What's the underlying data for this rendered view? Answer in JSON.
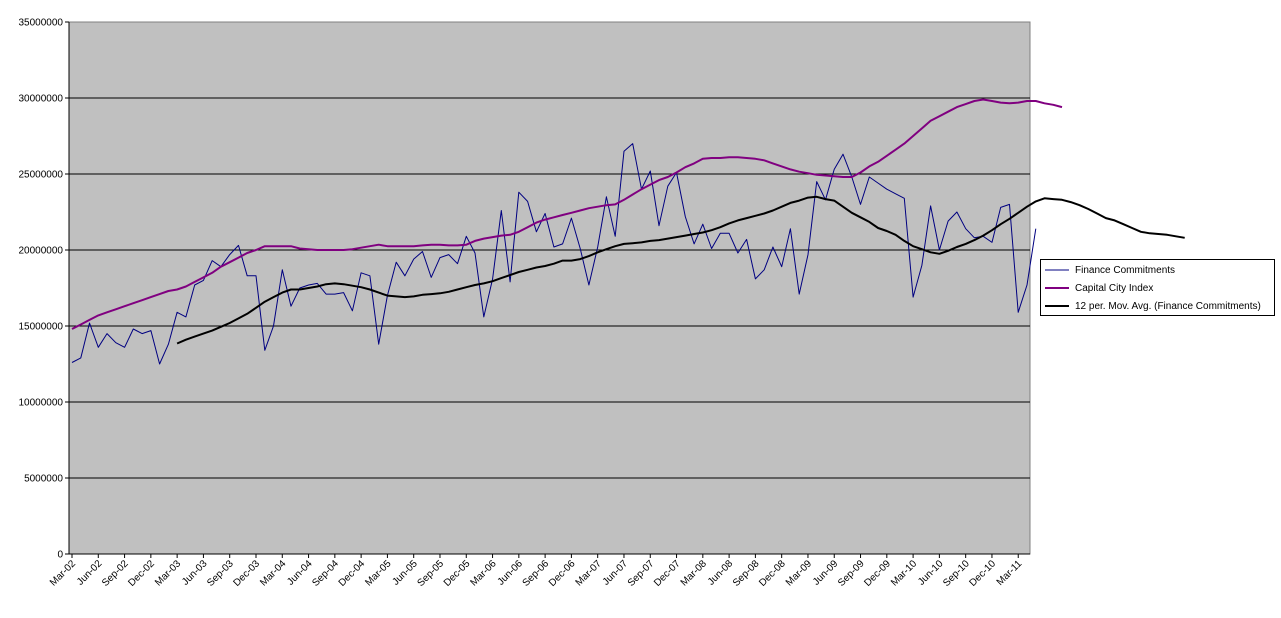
{
  "chart_data": {
    "type": "line",
    "title": "",
    "xlabel": "",
    "ylabel": "",
    "ylim": [
      0,
      35000000
    ],
    "yticks": [
      0,
      5000000,
      10000000,
      15000000,
      20000000,
      25000000,
      30000000,
      35000000
    ],
    "ytick_labels": [
      "0",
      "5000000",
      "10000000",
      "15000000",
      "20000000",
      "25000000",
      "30000000",
      "35000000"
    ],
    "x_start": "Mar-02",
    "x_end": "Apr-11",
    "xtick_labels": [
      "Mar-02",
      "Jun-02",
      "Sep-02",
      "Dec-02",
      "Mar-03",
      "Jun-03",
      "Sep-03",
      "Dec-03",
      "Mar-04",
      "Jun-04",
      "Sep-04",
      "Dec-04",
      "Mar-05",
      "Jun-05",
      "Sep-05",
      "Dec-05",
      "Mar-06",
      "Jun-06",
      "Sep-06",
      "Dec-06",
      "Mar-07",
      "Jun-07",
      "Sep-07",
      "Dec-07",
      "Mar-08",
      "Jun-08",
      "Sep-08",
      "Dec-08",
      "Mar-09",
      "Jun-09",
      "Sep-09",
      "Dec-09",
      "Mar-10",
      "Jun-10",
      "Sep-10",
      "Dec-10",
      "Mar-11"
    ],
    "grid": "horizontal",
    "legend_position": "right",
    "plot_background": "#c0c0c0",
    "series": [
      {
        "name": "Finance Commitments",
        "color": "#000080",
        "width": 1,
        "values": [
          12600000,
          12900000,
          15200000,
          13600000,
          14500000,
          13900000,
          13600000,
          14800000,
          14500000,
          14700000,
          12500000,
          13800000,
          15900000,
          15600000,
          17700000,
          18000000,
          19300000,
          18900000,
          19700000,
          20300000,
          18300000,
          18300000,
          13400000,
          15000000,
          18700000,
          16300000,
          17500000,
          17700000,
          17800000,
          17100000,
          17100000,
          17200000,
          16000000,
          18500000,
          18300000,
          13800000,
          17000000,
          19200000,
          18300000,
          19400000,
          19900000,
          18200000,
          19500000,
          19700000,
          19100000,
          20900000,
          19800000,
          15600000,
          18100000,
          22600000,
          17900000,
          23800000,
          23200000,
          21200000,
          22400000,
          20200000,
          20400000,
          22100000,
          20100000,
          17700000,
          20200000,
          23500000,
          20900000,
          26500000,
          27000000,
          24000000,
          25200000,
          21600000,
          24200000,
          25100000,
          22200000,
          20400000,
          21700000,
          20100000,
          21100000,
          21100000,
          19800000,
          20700000,
          18100000,
          18700000,
          20200000,
          18900000,
          21400000,
          17100000,
          19700000,
          24500000,
          23300000,
          25300000,
          26300000,
          24800000,
          23000000,
          24800000,
          24400000,
          24000000,
          23700000,
          23400000,
          16900000,
          19000000,
          22900000,
          20000000,
          21900000,
          22500000,
          21400000,
          20800000,
          20900000,
          20500000,
          22800000,
          23000000,
          15900000,
          17700000,
          21400000
        ],
        "start_month": 0
      },
      {
        "name": "Capital City Index",
        "color": "#800080",
        "width": 2,
        "values": [
          14800000,
          15100000,
          15400000,
          15700000,
          15900000,
          16100000,
          16300000,
          16500000,
          16700000,
          16900000,
          17100000,
          17300000,
          17400000,
          17600000,
          17900000,
          18200000,
          18500000,
          18900000,
          19200000,
          19500000,
          19800000,
          20000000,
          20250000,
          20250000,
          20250000,
          20250000,
          20100000,
          20050000,
          20000000,
          20000000,
          20000000,
          20000000,
          20050000,
          20150000,
          20250000,
          20350000,
          20250000,
          20250000,
          20250000,
          20250000,
          20300000,
          20350000,
          20350000,
          20300000,
          20300000,
          20350000,
          20600000,
          20750000,
          20850000,
          20950000,
          21000000,
          21200000,
          21500000,
          21800000,
          22000000,
          22150000,
          22300000,
          22450000,
          22600000,
          22750000,
          22850000,
          22950000,
          23000000,
          23300000,
          23650000,
          24000000,
          24300000,
          24600000,
          24800000,
          25100000,
          25450000,
          25700000,
          26000000,
          26050000,
          26050000,
          26100000,
          26100000,
          26050000,
          26000000,
          25900000,
          25700000,
          25500000,
          25300000,
          25150000,
          25050000,
          24950000,
          24900000,
          24850000,
          24800000,
          24800000,
          25100000,
          25500000,
          25800000,
          26200000,
          26600000,
          27000000,
          27500000,
          28000000,
          28500000,
          28800000,
          29100000,
          29400000,
          29600000,
          29800000,
          29900000,
          29800000,
          29700000,
          29650000,
          29700000,
          29800000,
          29800000,
          29650000,
          29550000,
          29400000
        ],
        "start_month": 0
      },
      {
        "name": "12 per. Mov. Avg. (Finance Commitments)",
        "color": "#000000",
        "width": 2,
        "values": [
          13850000,
          14100000,
          14300000,
          14500000,
          14700000,
          14950000,
          15200000,
          15500000,
          15800000,
          16200000,
          16600000,
          16900000,
          17200000,
          17400000,
          17400000,
          17500000,
          17600000,
          17750000,
          17800000,
          17750000,
          17650000,
          17550000,
          17400000,
          17200000,
          17000000,
          16950000,
          16900000,
          16950000,
          17050000,
          17100000,
          17150000,
          17250000,
          17400000,
          17550000,
          17700000,
          17800000,
          17950000,
          18150000,
          18350000,
          18550000,
          18700000,
          18850000,
          18950000,
          19100000,
          19300000,
          19300000,
          19400000,
          19600000,
          19850000,
          20050000,
          20250000,
          20400000,
          20450000,
          20500000,
          20600000,
          20650000,
          20750000,
          20850000,
          20950000,
          21050000,
          21150000,
          21300000,
          21500000,
          21750000,
          21950000,
          22100000,
          22250000,
          22400000,
          22600000,
          22850000,
          23100000,
          23250000,
          23450000,
          23500000,
          23350000,
          23250000,
          22850000,
          22450000,
          22150000,
          21850000,
          21450000,
          21250000,
          21000000,
          20600000,
          20250000,
          20050000,
          19850000,
          19750000,
          19950000,
          20200000,
          20400000,
          20650000,
          20950000,
          21300000,
          21700000,
          22050000,
          22450000,
          22850000,
          23200000,
          23400000,
          23350000,
          23300000,
          23150000,
          22950000,
          22700000,
          22400000,
          22100000,
          21950000,
          21700000,
          21450000,
          21200000,
          21100000,
          21050000,
          21000000,
          20900000,
          20800000
        ],
        "start_month": 12
      }
    ]
  }
}
